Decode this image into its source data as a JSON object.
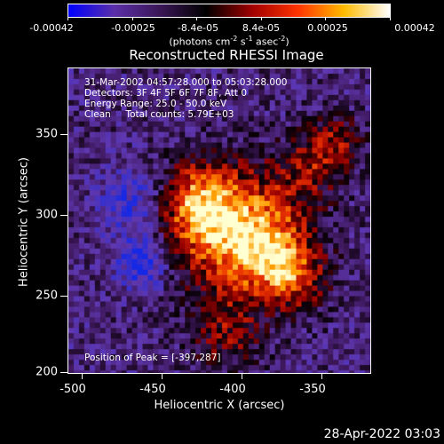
{
  "colorbar": {
    "tick_labels": [
      "-0.00042",
      "-0.00025",
      "-8.4e-05",
      "8.4e-05",
      "0.00025",
      "0.00042"
    ],
    "unit_label": "(photons cm",
    "unit_exp1": "-2",
    "unit_mid": " s",
    "unit_exp2": "-1",
    "unit_mid2": " asec",
    "unit_exp3": "-2",
    "unit_end": ")",
    "colors": [
      "#0000ff",
      "#5a2fa8",
      "#3a1656",
      "#000000",
      "#a00000",
      "#ff3300",
      "#ffbb00",
      "#ffffff"
    ]
  },
  "title": "Reconstructed RHESSI Image",
  "info": {
    "line1": "31-Mar-2002 04:57:28.000 to 05:03:28.000",
    "line2": "Detectors: 3F 4F 5F 6F 7F 8F, Att 0",
    "line3": "Energy Range: 25.0 - 50.0 keV",
    "line4": "Clean     Total counts: 5.79E+03"
  },
  "peak_label": "Position of Peak = [-397,287]",
  "axes": {
    "x_ticks": [
      "-500",
      "-450",
      "-400",
      "-350"
    ],
    "y_ticks": [
      "350",
      "300",
      "250",
      "200"
    ],
    "xlabel": "Heliocentric X (arcsec)",
    "ylabel": "Heliocentric Y (arcsec)",
    "xlim": [
      -503,
      -314
    ],
    "ylim": [
      199,
      389
    ]
  },
  "timestamp": "28-Apr-2022 03:03"
}
